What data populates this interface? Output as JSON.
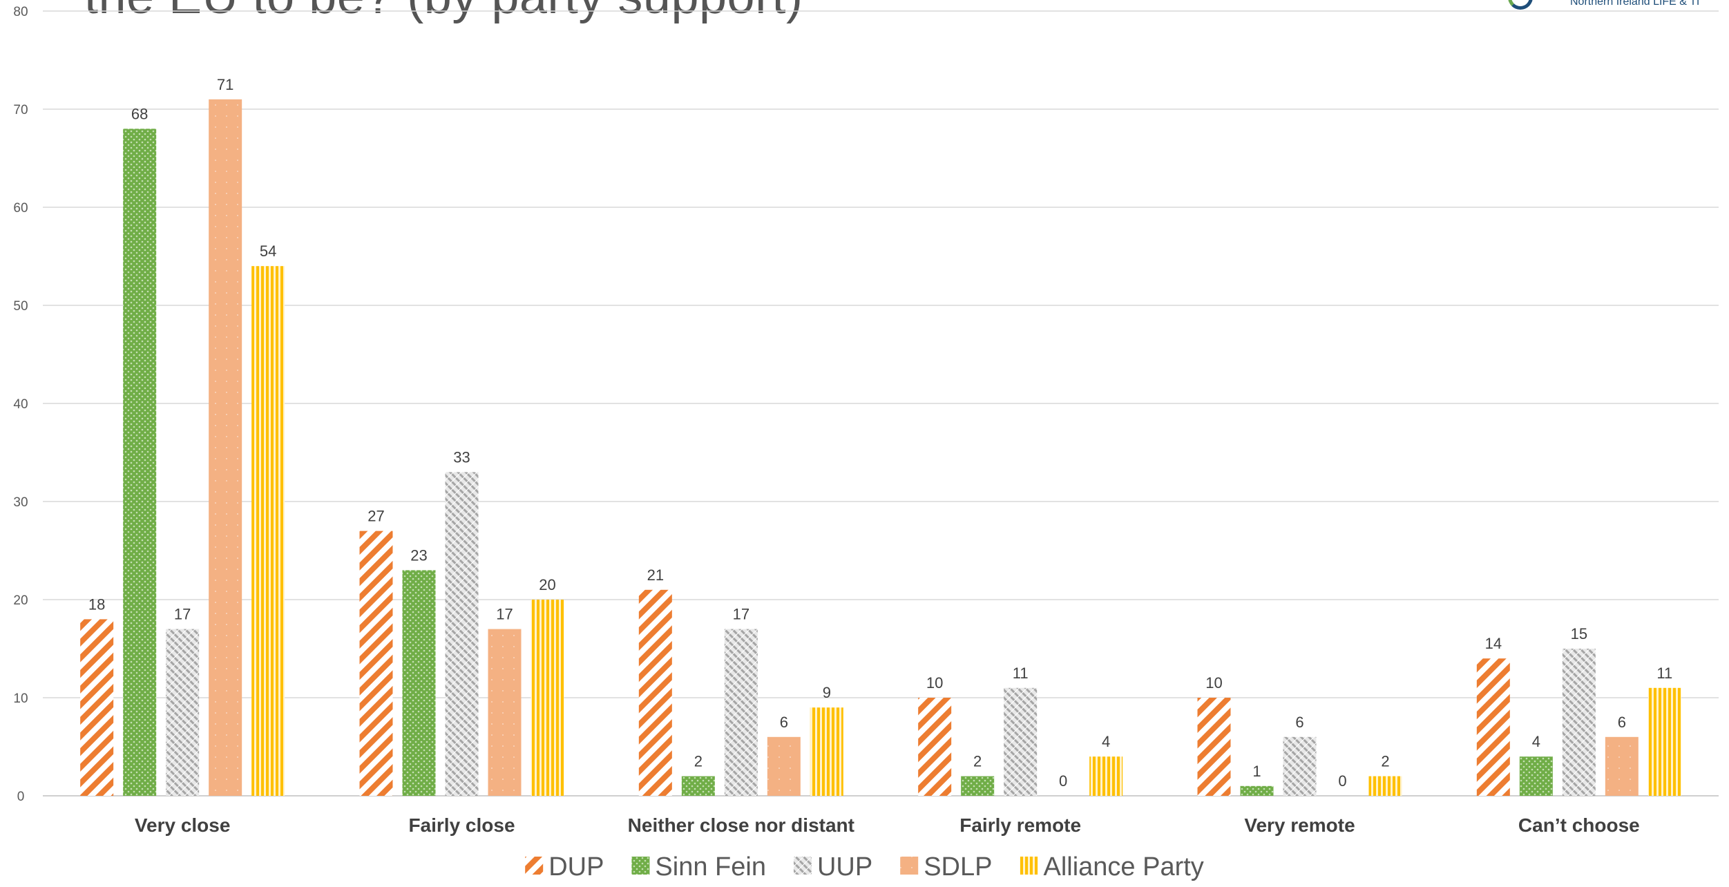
{
  "title": "the EU to be? (by party support)",
  "logo_text": "Northern Ireland LIFE & TI",
  "chart_data": {
    "type": "bar",
    "title": "the EU to be? (by party support)",
    "categories": [
      "Very close",
      "Fairly close",
      "Neither close nor distant",
      "Fairly remote",
      "Very remote",
      "Can’t choose"
    ],
    "series": [
      {
        "name": "DUP",
        "values": [
          18,
          27,
          21,
          10,
          10,
          14
        ],
        "color": "#ed7d31",
        "pattern": "diagonal"
      },
      {
        "name": "Sinn Fein",
        "values": [
          68,
          23,
          2,
          2,
          1,
          4
        ],
        "color": "#70ad47",
        "pattern": "dots"
      },
      {
        "name": "UUP",
        "values": [
          17,
          33,
          17,
          11,
          6,
          15
        ],
        "color": "#a5a5a5",
        "pattern": "hatch"
      },
      {
        "name": "SDLP",
        "values": [
          71,
          17,
          6,
          0,
          0,
          6
        ],
        "color": "#f4b183",
        "pattern": "solid"
      },
      {
        "name": "Alliance Party",
        "values": [
          54,
          20,
          9,
          4,
          2,
          11
        ],
        "color": "#ffc000",
        "pattern": "vertical"
      }
    ],
    "ylim": [
      0,
      80
    ],
    "yticks": [
      0,
      10,
      20,
      30,
      40,
      50,
      60,
      70,
      80
    ],
    "grid": true,
    "legend": "bottom"
  }
}
